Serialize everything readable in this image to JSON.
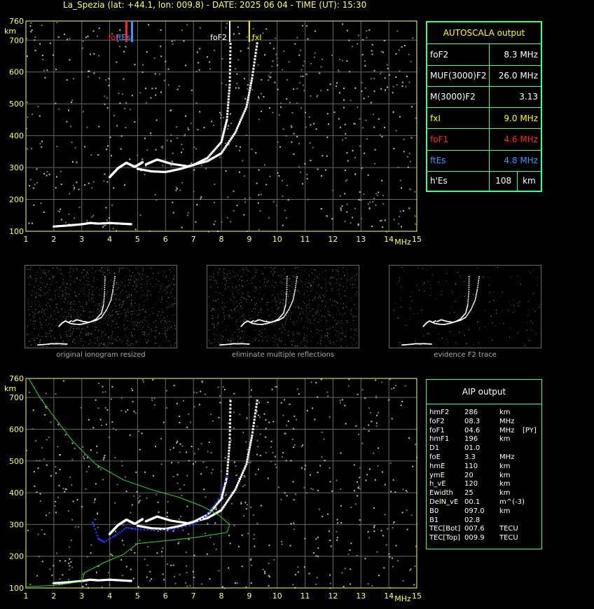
{
  "title": "La_Spezia (lat: +44.1, lon: 009.8) - DATE: 2025 06 04 - TIME (UT): 15:30",
  "axes": {
    "x_unit": "MHz",
    "y_unit": "km",
    "x_ticks": [
      "1",
      "2",
      "3",
      "4",
      "5",
      "6",
      "7",
      "8",
      "9",
      "10",
      "11",
      "12",
      "13",
      "14",
      "15"
    ],
    "y_ticks": [
      "760",
      "700",
      "600",
      "500",
      "400",
      "300",
      "200",
      "100"
    ]
  },
  "markers": {
    "foF1": "foF1",
    "ftEs": "ftEs",
    "foF2": "foF2",
    "fxI": "fxI"
  },
  "autoscala": {
    "header": "AUTOSCALA output",
    "rows": [
      {
        "label": "foF2",
        "value": "8.3 MHz",
        "color": "#ffffff"
      },
      {
        "label": "MUF(3000)F2",
        "value": "26.0 MHz",
        "color": "#ffffff"
      },
      {
        "label": "M(3000)F2",
        "value": "3.13",
        "color": "#ffffff"
      },
      {
        "label": "fxI",
        "value": "9.0 MHz",
        "color": "#ffff00"
      },
      {
        "label": "foF1",
        "value": "4.6 MHz",
        "color": "#ff2222"
      },
      {
        "label": "ftEs",
        "value": "4.8 MHz",
        "color": "#3399ff"
      }
    ],
    "hes": {
      "label": "h'Es",
      "value": "108",
      "unit": "km"
    }
  },
  "thumbs": {
    "captions": [
      "original ionogram resized",
      "eliminate multiple reflections",
      "evidence F2 trace"
    ]
  },
  "aip": {
    "header": "AIP output",
    "rows": [
      {
        "name": "hmF2",
        "val": "286",
        "unit": "km",
        "extra": ""
      },
      {
        "name": "foF2",
        "val": "08.3",
        "unit": "MHz",
        "extra": ""
      },
      {
        "name": "foF1",
        "val": "04.6",
        "unit": "MHz",
        "extra": "[PY]"
      },
      {
        "name": "hmF1",
        "val": "196",
        "unit": "km",
        "extra": ""
      },
      {
        "name": "D1",
        "val": "01.0",
        "unit": "",
        "extra": ""
      },
      {
        "name": "foE",
        "val": "3.3",
        "unit": "MHz",
        "extra": ""
      },
      {
        "name": "hmE",
        "val": "110",
        "unit": "km",
        "extra": ""
      },
      {
        "name": "ymE",
        "val": "20",
        "unit": "km",
        "extra": ""
      },
      {
        "name": "h_vE",
        "val": "120",
        "unit": "km",
        "extra": ""
      },
      {
        "name": "Ewidth",
        "val": "25",
        "unit": "km",
        "extra": ""
      },
      {
        "name": "DelN_vE",
        "val": "00.1",
        "unit": "m^(-3)",
        "extra": ""
      },
      {
        "name": "B0",
        "val": "097.0",
        "unit": "km",
        "extra": ""
      },
      {
        "name": "B1",
        "val": "02.8",
        "unit": "",
        "extra": ""
      },
      {
        "name": "TEC[Bot]",
        "val": "007.6",
        "unit": "TECU",
        "extra": ""
      },
      {
        "name": "TEC[Top]",
        "val": "009.9",
        "unit": "TECU",
        "extra": ""
      }
    ]
  },
  "chart_data": [
    {
      "type": "scatter",
      "name": "ionogram-autoscala",
      "xlim": [
        1,
        15
      ],
      "ylim": [
        100,
        760
      ],
      "markers": {
        "foF1": 4.6,
        "ftEs": 4.8,
        "foF2": 8.3,
        "fxI": 9.0
      },
      "traces": {
        "es": [
          [
            2,
            115
          ],
          [
            2.5,
            118
          ],
          [
            3,
            122
          ],
          [
            3.3,
            126
          ],
          [
            3.6,
            124
          ],
          [
            4,
            126
          ],
          [
            4.4,
            124
          ],
          [
            4.8,
            122
          ]
        ],
        "o": [
          [
            5,
            296
          ],
          [
            5.5,
            288
          ],
          [
            6,
            286
          ],
          [
            6.5,
            295
          ],
          [
            7,
            308
          ],
          [
            7.5,
            330
          ],
          [
            8,
            380
          ],
          [
            8.2,
            450
          ],
          [
            8.3,
            560
          ],
          [
            8.33,
            700
          ]
        ],
        "f1": [
          [
            4,
            270
          ],
          [
            4.3,
            298
          ],
          [
            4.6,
            315
          ],
          [
            4.9,
            302
          ],
          [
            5.2,
            318
          ]
        ],
        "x": [
          [
            5.3,
            310
          ],
          [
            5.7,
            325
          ],
          [
            6.2,
            312
          ],
          [
            6.8,
            304
          ],
          [
            7.5,
            320
          ],
          [
            8,
            345
          ],
          [
            8.5,
            410
          ],
          [
            8.9,
            490
          ],
          [
            9.1,
            580
          ],
          [
            9.3,
            700
          ]
        ]
      }
    },
    {
      "type": "line",
      "name": "ionogram-aip",
      "xlim": [
        1,
        15
      ],
      "ylim": [
        100,
        760
      ],
      "profile": [
        [
          1.1,
          760
        ],
        [
          1.5,
          700
        ],
        [
          2,
          640
        ],
        [
          2.7,
          560
        ],
        [
          3.5,
          490
        ],
        [
          4.5,
          440
        ],
        [
          5.5,
          410
        ],
        [
          6.5,
          385
        ],
        [
          7.3,
          358
        ],
        [
          7.9,
          330
        ],
        [
          8.3,
          300
        ],
        [
          8.2,
          275
        ],
        [
          7,
          258
        ],
        [
          5,
          240
        ],
        [
          4.7,
          220
        ],
        [
          4.5,
          206
        ],
        [
          3.8,
          180
        ],
        [
          3.1,
          148
        ],
        [
          3,
          120
        ],
        [
          2,
          108
        ],
        [
          1,
          104
        ]
      ],
      "model": [
        [
          3.4,
          305
        ],
        [
          3.6,
          255
        ],
        [
          3.8,
          245
        ],
        [
          4.2,
          265
        ],
        [
          4.6,
          290
        ],
        [
          5,
          285
        ],
        [
          5.6,
          282
        ],
        [
          6.3,
          285
        ],
        [
          7,
          300
        ],
        [
          7.5,
          330
        ],
        [
          7.9,
          380
        ],
        [
          8.2,
          450
        ]
      ]
    }
  ]
}
